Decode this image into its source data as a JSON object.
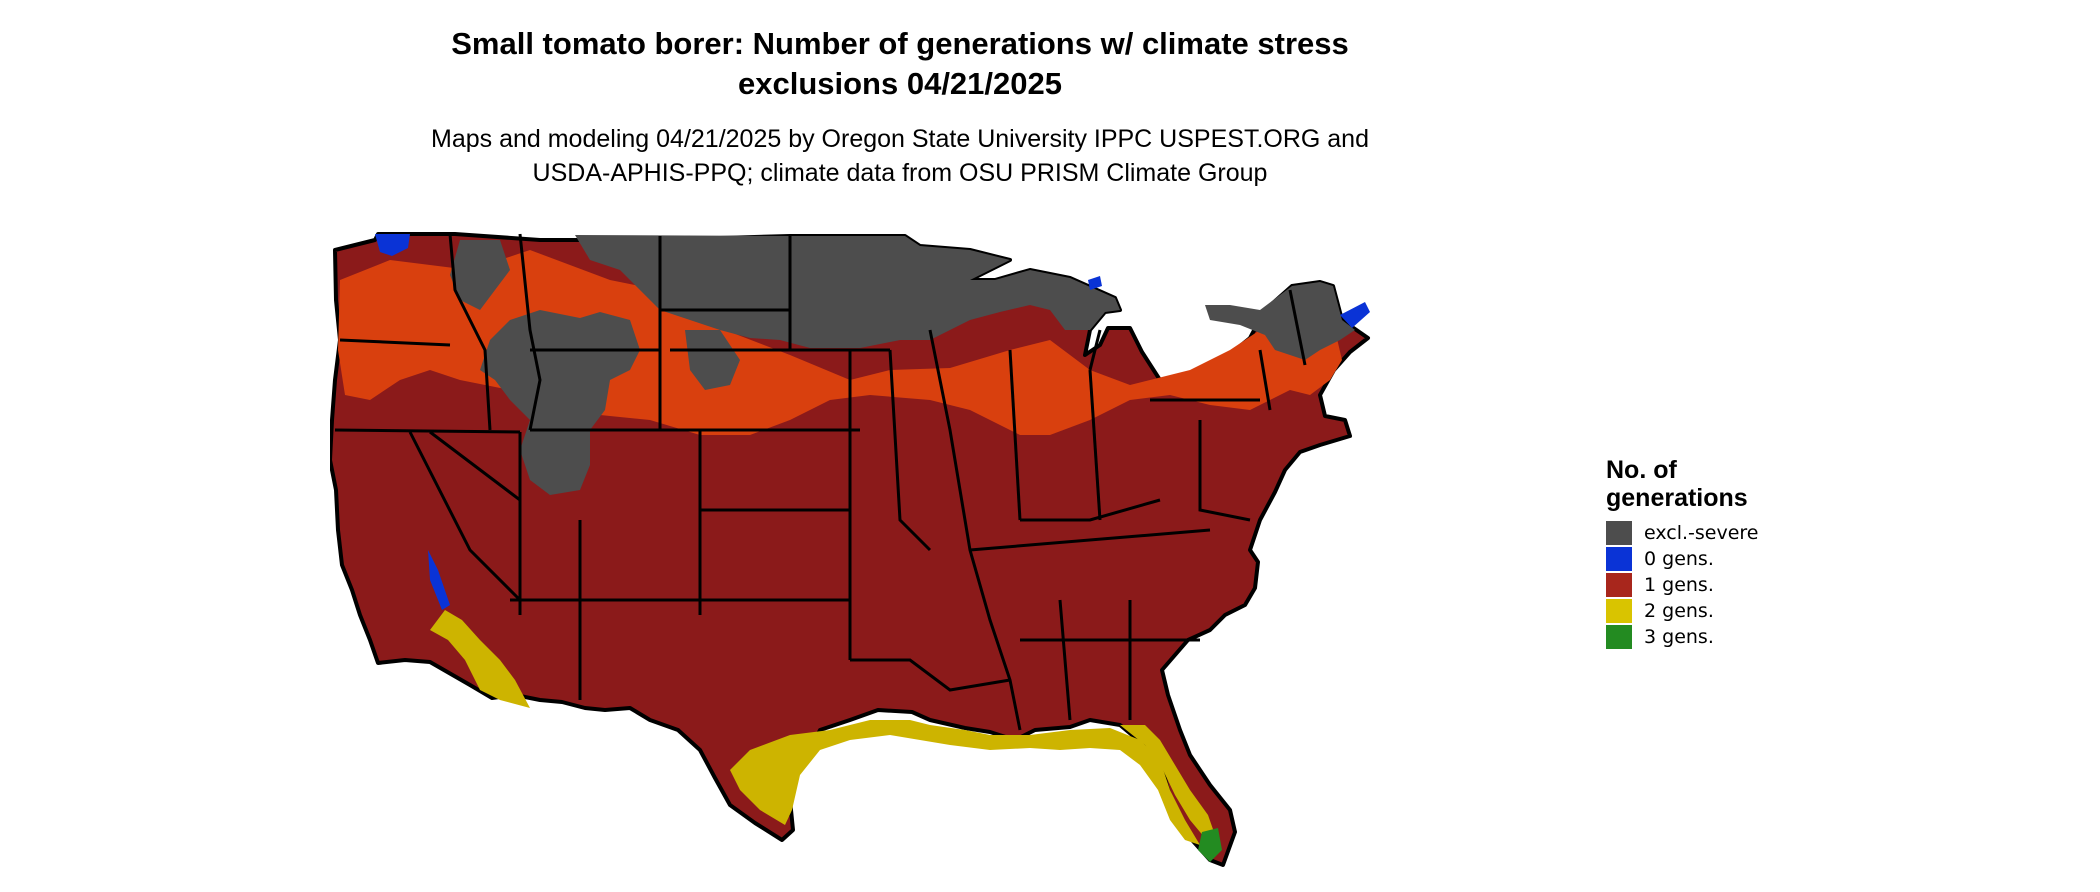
{
  "title_line1": "Small tomato borer: Number of generations w/ climate stress",
  "title_line2": "exclusions 04/21/2025",
  "subtitle_line1": "Maps and modeling 04/21/2025 by Oregon State University IPPC USPEST.ORG and",
  "subtitle_line2": "USDA-APHIS-PPQ; climate data from OSU PRISM Climate Group",
  "legend": {
    "title_line1": "No. of",
    "title_line2": "generations",
    "items": [
      {
        "label": "excl.-severe",
        "color": "#4d4d4d"
      },
      {
        "label": "0 gens.",
        "color": "#0a33d6"
      },
      {
        "label": "1 gens.",
        "color": "#a8261c"
      },
      {
        "label": "2 gens.",
        "color": "#d9c400"
      },
      {
        "label": "3 gens.",
        "color": "#238b21"
      }
    ]
  },
  "colors": {
    "excluded": "#4d4d4d",
    "one_gen_dark": "#8b1a1a",
    "one_gen_light": "#d9400e",
    "two_gen": "#cdb400",
    "three_gen": "#238b21",
    "zero_gen": "#0a33d6",
    "border": "#000000"
  }
}
